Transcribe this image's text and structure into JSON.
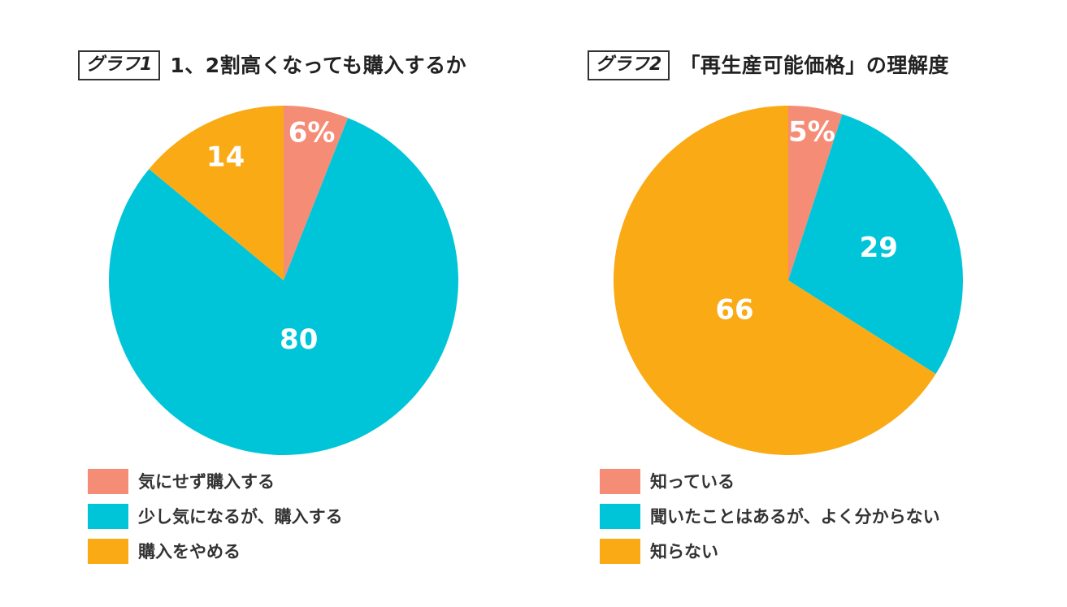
{
  "chart_data": [
    {
      "type": "pie",
      "title_tag": "グラフ1",
      "title": "1、2割高くなっても購入するか",
      "categories": [
        "気にせず購入する",
        "少し気になるが、購入する",
        "購入をやめる"
      ],
      "values": [
        6,
        80,
        14
      ],
      "value_labels": [
        "6%",
        "80",
        "14"
      ],
      "colors": [
        "#F58C76",
        "#00C5D9",
        "#FAAA14"
      ],
      "legend_position": "bottom-left"
    },
    {
      "type": "pie",
      "title_tag": "グラフ2",
      "title": "「再生産可能価格」の理解度",
      "categories": [
        "知っている",
        "聞いたことはあるが、よく分からない",
        "知らない"
      ],
      "values": [
        5,
        29,
        66
      ],
      "value_labels": [
        "5%",
        "29",
        "66"
      ],
      "colors": [
        "#F58C76",
        "#00C5D9",
        "#FAAA14"
      ],
      "legend_position": "bottom-left"
    }
  ]
}
